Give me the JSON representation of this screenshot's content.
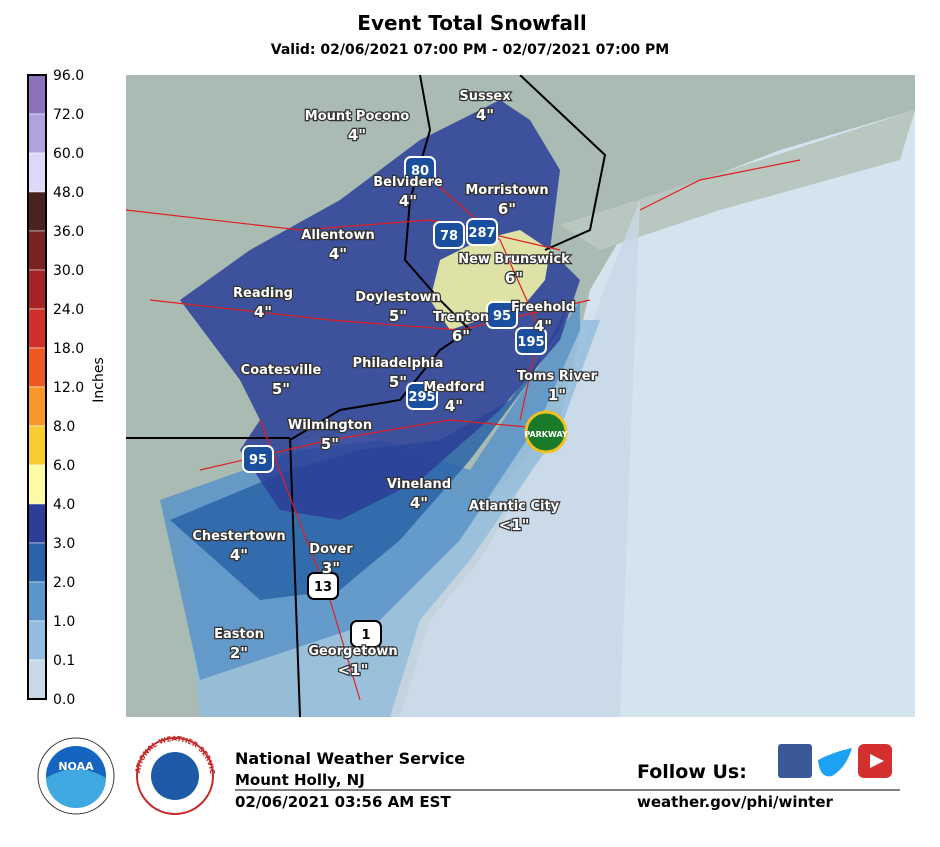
{
  "header": {
    "title": "Event Total Snowfall",
    "subtitle": "Valid: 02/06/2021 07:00 PM - 02/07/2021 07:00 PM"
  },
  "legend": {
    "label": "Inches",
    "ticks": [
      "96.0",
      "72.0",
      "60.0",
      "48.0",
      "36.0",
      "30.0",
      "24.0",
      "18.0",
      "12.0",
      "8.0",
      "6.0",
      "4.0",
      "3.0",
      "2.0",
      "1.0",
      "0.1",
      "0.0"
    ],
    "colors": [
      "#8c72b8",
      "#b0a2dc",
      "#dcdaf8",
      "#4a2222",
      "#782222",
      "#a82424",
      "#d0302a",
      "#ec5a22",
      "#f8982a",
      "#f8cc30",
      "#fcfca8",
      "#2c3e98",
      "#2a64a8",
      "#5a94c8",
      "#94bcdc",
      "#c8d8e6",
      "#f4f4f4"
    ]
  },
  "cities": [
    {
      "name": "Sussex",
      "amount": "4\""
    },
    {
      "name": "Mount Pocono",
      "amount": "4\""
    },
    {
      "name": "Belvidere",
      "amount": "4\""
    },
    {
      "name": "Morristown",
      "amount": "6\""
    },
    {
      "name": "Allentown",
      "amount": "4\""
    },
    {
      "name": "New Brunswick",
      "amount": "6\""
    },
    {
      "name": "Reading",
      "amount": "4\""
    },
    {
      "name": "Doylestown",
      "amount": "5\""
    },
    {
      "name": "Trenton",
      "amount": "6\""
    },
    {
      "name": "Freehold",
      "amount": "4\""
    },
    {
      "name": "Philadelphia",
      "amount": "5\""
    },
    {
      "name": "Coatesville",
      "amount": "5\""
    },
    {
      "name": "Medford",
      "amount": "4\""
    },
    {
      "name": "Toms River",
      "amount": "1\""
    },
    {
      "name": "Wilmington",
      "amount": "5\""
    },
    {
      "name": "Vineland",
      "amount": "4\""
    },
    {
      "name": "Atlantic City",
      "amount": "<1\""
    },
    {
      "name": "Chestertown",
      "amount": "4\""
    },
    {
      "name": "Dover",
      "amount": "3\""
    },
    {
      "name": "Easton",
      "amount": "2\""
    },
    {
      "name": "Georgetown",
      "amount": "<1\""
    }
  ],
  "shields": [
    "80",
    "78",
    "287",
    "95",
    "195",
    "295",
    "95",
    "13",
    "1",
    "PARKWAY"
  ],
  "logos": {
    "noaa": "NOAA",
    "nws": "NATIONAL WEATHER SERVICE"
  },
  "footer": {
    "office": "National Weather Service",
    "location": "Mount Holly, NJ",
    "issued": "02/06/2021 03:56 AM EST",
    "follow": "Follow Us:",
    "url": "weather.gov/phi/winter"
  }
}
